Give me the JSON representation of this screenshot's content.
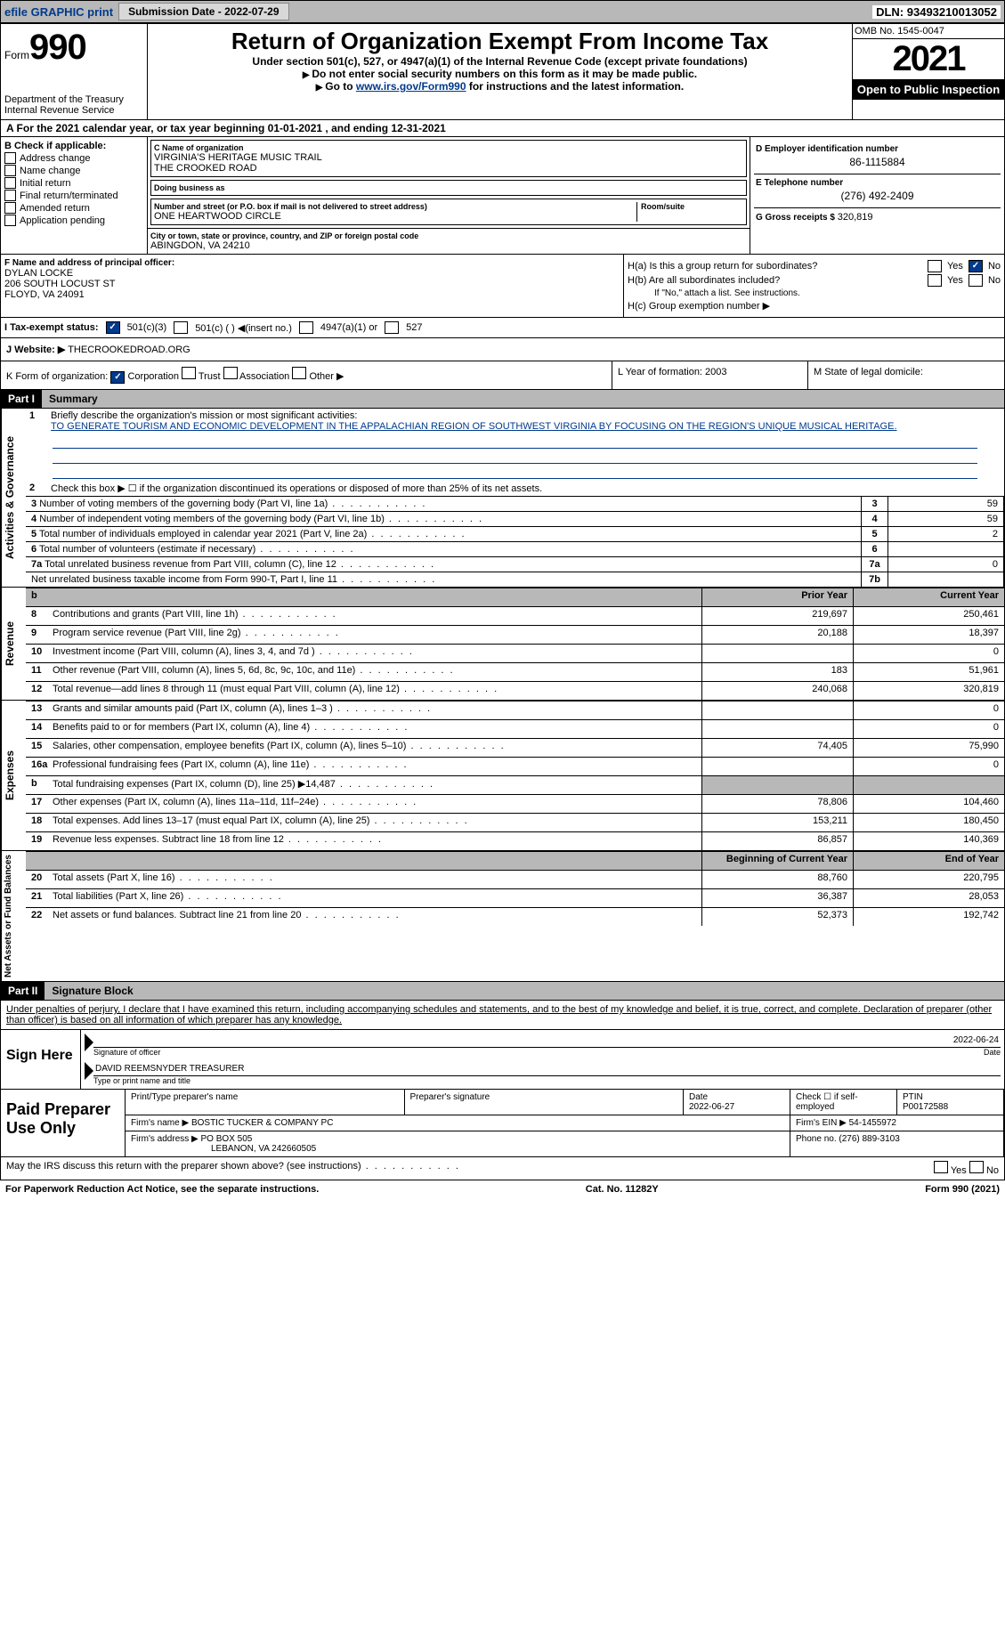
{
  "topbar": {
    "efile": "efile GRAPHIC print",
    "sub_label": "Submission Date - ",
    "sub_date": "2022-07-29",
    "dln_label": "DLN: ",
    "dln": "93493210013052"
  },
  "header": {
    "form_word": "Form",
    "form_num": "990",
    "dept": "Department of the Treasury\nInternal Revenue Service",
    "title": "Return of Organization Exempt From Income Tax",
    "subtitle": "Under section 501(c), 527, or 4947(a)(1) of the Internal Revenue Code (except private foundations)",
    "note1": "Do not enter social security numbers on this form as it may be made public.",
    "note2_pre": "Go to ",
    "note2_link": "www.irs.gov/Form990",
    "note2_post": " for instructions and the latest information.",
    "omb": "OMB No. 1545-0047",
    "year": "2021",
    "open": "Open to Public Inspection"
  },
  "rowA": {
    "text": "A For the 2021 calendar year, or tax year beginning ",
    "begin": "01-01-2021",
    "mid": " , and ending ",
    "end": "12-31-2021"
  },
  "colB": {
    "label": "B Check if applicable:",
    "items": [
      "Address change",
      "Name change",
      "Initial return",
      "Final return/terminated",
      "Amended return",
      "Application pending"
    ]
  },
  "colC": {
    "name_label": "C Name of organization",
    "name1": "VIRGINIA'S HERITAGE MUSIC TRAIL",
    "name2": "THE CROOKED ROAD",
    "dba_label": "Doing business as",
    "dba": "",
    "street_label": "Number and street (or P.O. box if mail is not delivered to street address)",
    "room_label": "Room/suite",
    "street": "ONE HEARTWOOD CIRCLE",
    "city_label": "City or town, state or province, country, and ZIP or foreign postal code",
    "city": "ABINGDON, VA  24210"
  },
  "colD": {
    "ein_label": "D Employer identification number",
    "ein": "86-1115884",
    "tel_label": "E Telephone number",
    "tel": "(276) 492-2409",
    "gross_label": "G Gross receipts $ ",
    "gross": "320,819"
  },
  "rowF": {
    "label": "F Name and address of principal officer:",
    "name": "DYLAN LOCKE",
    "addr1": "206 SOUTH LOCUST ST",
    "addr2": "FLOYD, VA  24091"
  },
  "rowH": {
    "ha": "H(a)  Is this a group return for subordinates?",
    "hb": "H(b)  Are all subordinates included?",
    "hb_note": "If \"No,\" attach a list. See instructions.",
    "hc": "H(c)  Group exemption number ▶",
    "yes": "Yes",
    "no": "No"
  },
  "status": {
    "label": "I   Tax-exempt status:",
    "c3": "501(c)(3)",
    "c": "501(c) (   ) ◀(insert no.)",
    "a1": "4947(a)(1) or",
    "s527": "527"
  },
  "website": {
    "label": "J   Website: ▶",
    "val": "THECROOKEDROAD.ORG"
  },
  "rowK": {
    "label": "K Form of organization:",
    "corp": "Corporation",
    "trust": "Trust",
    "assoc": "Association",
    "other": "Other ▶",
    "L": "L Year of formation: ",
    "Lval": "2003",
    "M": "M State of legal domicile:",
    "Mval": ""
  },
  "part1": {
    "num": "Part I",
    "title": "Summary"
  },
  "summary": {
    "sec1_label": "Activities & Governance",
    "line1": "Briefly describe the organization's mission or most significant activities:",
    "mission": "TO GENERATE TOURISM AND ECONOMIC DEVELOPMENT IN THE APPALACHIAN REGION OF SOUTHWEST VIRGINIA BY FOCUSING ON THE REGION'S UNIQUE MUSICAL HERITAGE.",
    "line2": "Check this box ▶ ☐ if the organization discontinued its operations or disposed of more than 25% of its net assets.",
    "rows_a": [
      {
        "n": "3",
        "t": "Number of voting members of the governing body (Part VI, line 1a)",
        "c": "3",
        "v": "59"
      },
      {
        "n": "4",
        "t": "Number of independent voting members of the governing body (Part VI, line 1b)",
        "c": "4",
        "v": "59"
      },
      {
        "n": "5",
        "t": "Total number of individuals employed in calendar year 2021 (Part V, line 2a)",
        "c": "5",
        "v": "2"
      },
      {
        "n": "6",
        "t": "Total number of volunteers (estimate if necessary)",
        "c": "6",
        "v": ""
      },
      {
        "n": "7a",
        "t": "Total unrelated business revenue from Part VIII, column (C), line 12",
        "c": "7a",
        "v": "0"
      },
      {
        "n": "",
        "t": "Net unrelated business taxable income from Form 990-T, Part I, line 11",
        "c": "7b",
        "v": ""
      }
    ],
    "col_hdr_prior": "Prior Year",
    "col_hdr_curr": "Current Year",
    "sec2_label": "Revenue",
    "rows_rev": [
      {
        "n": "8",
        "t": "Contributions and grants (Part VIII, line 1h)",
        "p": "219,697",
        "c": "250,461"
      },
      {
        "n": "9",
        "t": "Program service revenue (Part VIII, line 2g)",
        "p": "20,188",
        "c": "18,397"
      },
      {
        "n": "10",
        "t": "Investment income (Part VIII, column (A), lines 3, 4, and 7d )",
        "p": "",
        "c": "0"
      },
      {
        "n": "11",
        "t": "Other revenue (Part VIII, column (A), lines 5, 6d, 8c, 9c, 10c, and 11e)",
        "p": "183",
        "c": "51,961"
      },
      {
        "n": "12",
        "t": "Total revenue—add lines 8 through 11 (must equal Part VIII, column (A), line 12)",
        "p": "240,068",
        "c": "320,819"
      }
    ],
    "sec3_label": "Expenses",
    "rows_exp": [
      {
        "n": "13",
        "t": "Grants and similar amounts paid (Part IX, column (A), lines 1–3 )",
        "p": "",
        "c": "0"
      },
      {
        "n": "14",
        "t": "Benefits paid to or for members (Part IX, column (A), line 4)",
        "p": "",
        "c": "0"
      },
      {
        "n": "15",
        "t": "Salaries, other compensation, employee benefits (Part IX, column (A), lines 5–10)",
        "p": "74,405",
        "c": "75,990"
      },
      {
        "n": "16a",
        "t": "Professional fundraising fees (Part IX, column (A), line 11e)",
        "p": "",
        "c": "0"
      },
      {
        "n": "b",
        "t": "Total fundraising expenses (Part IX, column (D), line 25) ▶14,487",
        "p": "shade",
        "c": "shade"
      },
      {
        "n": "17",
        "t": "Other expenses (Part IX, column (A), lines 11a–11d, 11f–24e)",
        "p": "78,806",
        "c": "104,460"
      },
      {
        "n": "18",
        "t": "Total expenses. Add lines 13–17 (must equal Part IX, column (A), line 25)",
        "p": "153,211",
        "c": "180,450"
      },
      {
        "n": "19",
        "t": "Revenue less expenses. Subtract line 18 from line 12",
        "p": "86,857",
        "c": "140,369"
      }
    ],
    "sec4_label": "Net Assets or Fund Balances",
    "col_hdr_begin": "Beginning of Current Year",
    "col_hdr_end": "End of Year",
    "rows_net": [
      {
        "n": "20",
        "t": "Total assets (Part X, line 16)",
        "p": "88,760",
        "c": "220,795"
      },
      {
        "n": "21",
        "t": "Total liabilities (Part X, line 26)",
        "p": "36,387",
        "c": "28,053"
      },
      {
        "n": "22",
        "t": "Net assets or fund balances. Subtract line 21 from line 20",
        "p": "52,373",
        "c": "192,742"
      }
    ]
  },
  "part2": {
    "num": "Part II",
    "title": "Signature Block"
  },
  "penalty": "Under penalties of perjury, I declare that I have examined this return, including accompanying schedules and statements, and to the best of my knowledge and belief, it is true, correct, and complete. Declaration of preparer (other than officer) is based on all information of which preparer has any knowledge.",
  "sign": {
    "label": "Sign Here",
    "sig_of": "Signature of officer",
    "date": "2022-06-24",
    "name": "DAVID REEMSNYDER  TREASURER",
    "name_label": "Type or print name and title"
  },
  "prep": {
    "label": "Paid Preparer Use Only",
    "h1": "Print/Type preparer's name",
    "h2": "Preparer's signature",
    "h3": "Date",
    "h3v": "2022-06-27",
    "h4": "Check ☐ if self-employed",
    "h5": "PTIN",
    "h5v": "P00172588",
    "firm_label": "Firm's name    ▶",
    "firm": "BOSTIC TUCKER & COMPANY PC",
    "ein_label": "Firm's EIN ▶",
    "ein": "54-1455972",
    "addr_label": "Firm's address ▶",
    "addr1": "PO BOX 505",
    "addr2": "LEBANON, VA  242660505",
    "phone_label": "Phone no. ",
    "phone": "(276) 889-3103"
  },
  "discuss": "May the IRS discuss this return with the preparer shown above? (see instructions)",
  "footer": {
    "pra": "For Paperwork Reduction Act Notice, see the separate instructions.",
    "cat": "Cat. No. 11282Y",
    "form": "Form 990 (2021)"
  }
}
